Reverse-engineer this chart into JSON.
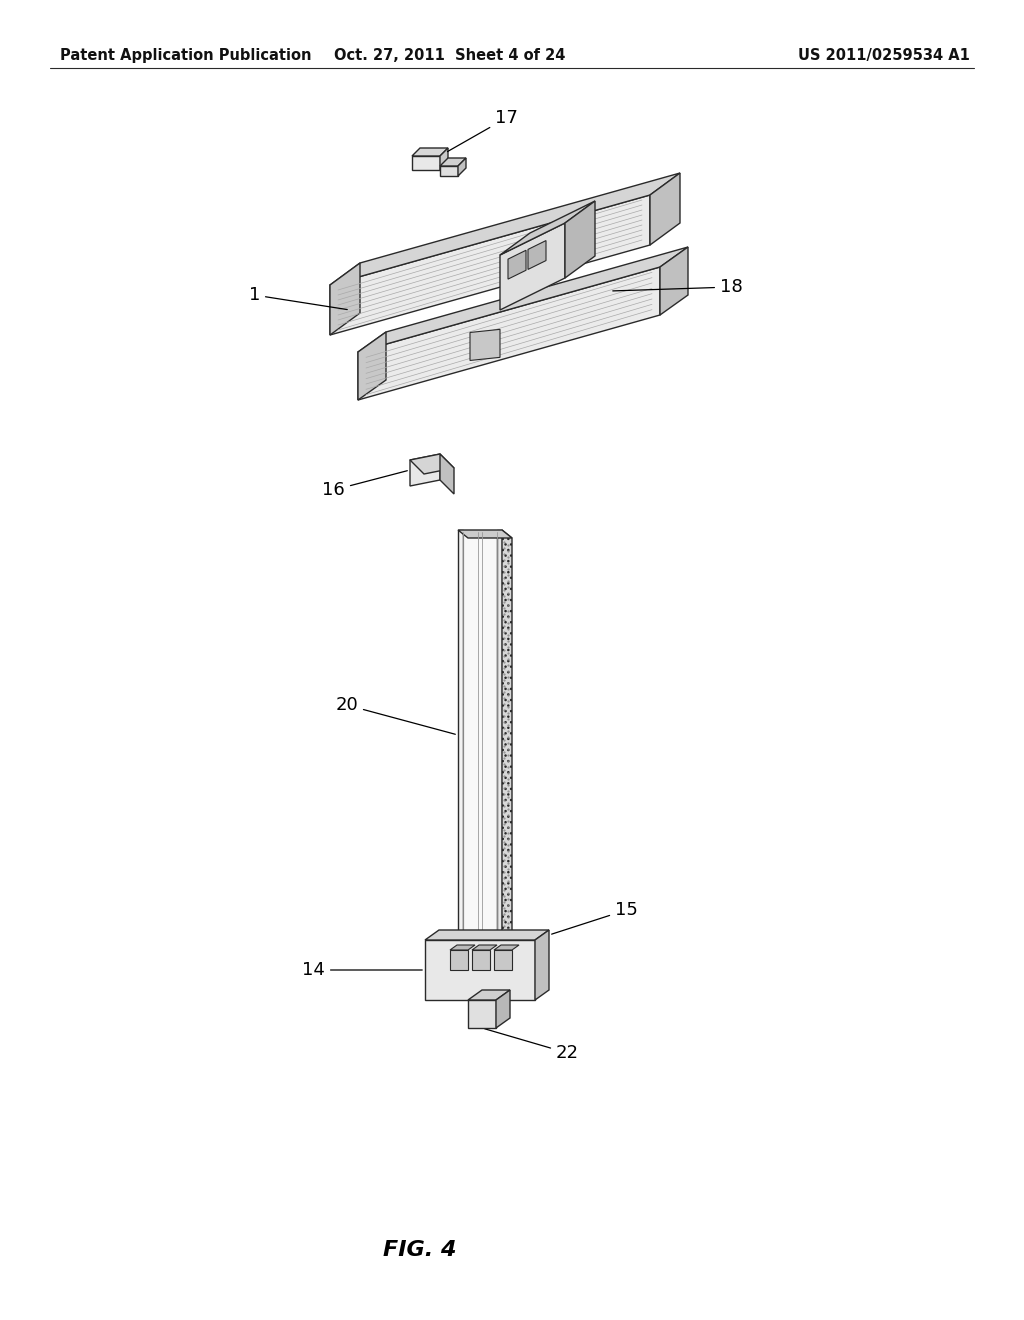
{
  "bg_color": "#ffffff",
  "header_left": "Patent Application Publication",
  "header_mid": "Oct. 27, 2011  Sheet 4 of 24",
  "header_right": "US 2011/0259534 A1",
  "figure_label": "FIG. 4",
  "line_color": "#2a2a2a",
  "face_light": "#f0f0f0",
  "face_mid": "#d8d8d8",
  "face_dark": "#b0b0b0",
  "hatch_color": "#888888"
}
